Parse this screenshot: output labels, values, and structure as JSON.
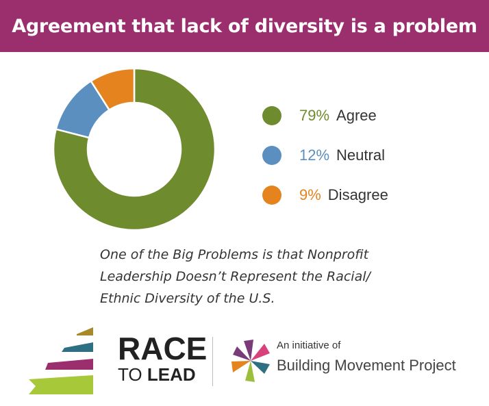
{
  "header": {
    "title": "Agreement that lack of diversity is a problem"
  },
  "chart_data": {
    "type": "pie",
    "donut": true,
    "categories": [
      "Agree",
      "Neutral",
      "Disagree"
    ],
    "values": [
      79,
      12,
      9
    ],
    "value_labels": [
      "79%",
      "12%",
      "9%"
    ],
    "colors": [
      "#6e8b2d",
      "#5a8fbf",
      "#e5841f"
    ],
    "legend_position": "right"
  },
  "caption": {
    "lines": [
      "One of the Big Problems is that Nonprofit",
      "Leadership Doesn’t Represent the Racial/",
      "Ethnic Diversity of the U.S."
    ]
  },
  "logo": {
    "race": "RACE",
    "to": "TO",
    "lead": "LEAD",
    "stripe_colors": [
      "#a8892a",
      "#2e6f84",
      "#9b2f6e",
      "#a7c838"
    ],
    "pinwheel_colors": [
      "#7a3b7a",
      "#d8417a",
      "#2e6f84",
      "#9bbf3a",
      "#e5841f"
    ]
  },
  "initiative": {
    "line1": "An initiative of",
    "line2": "Building Movement Project"
  }
}
